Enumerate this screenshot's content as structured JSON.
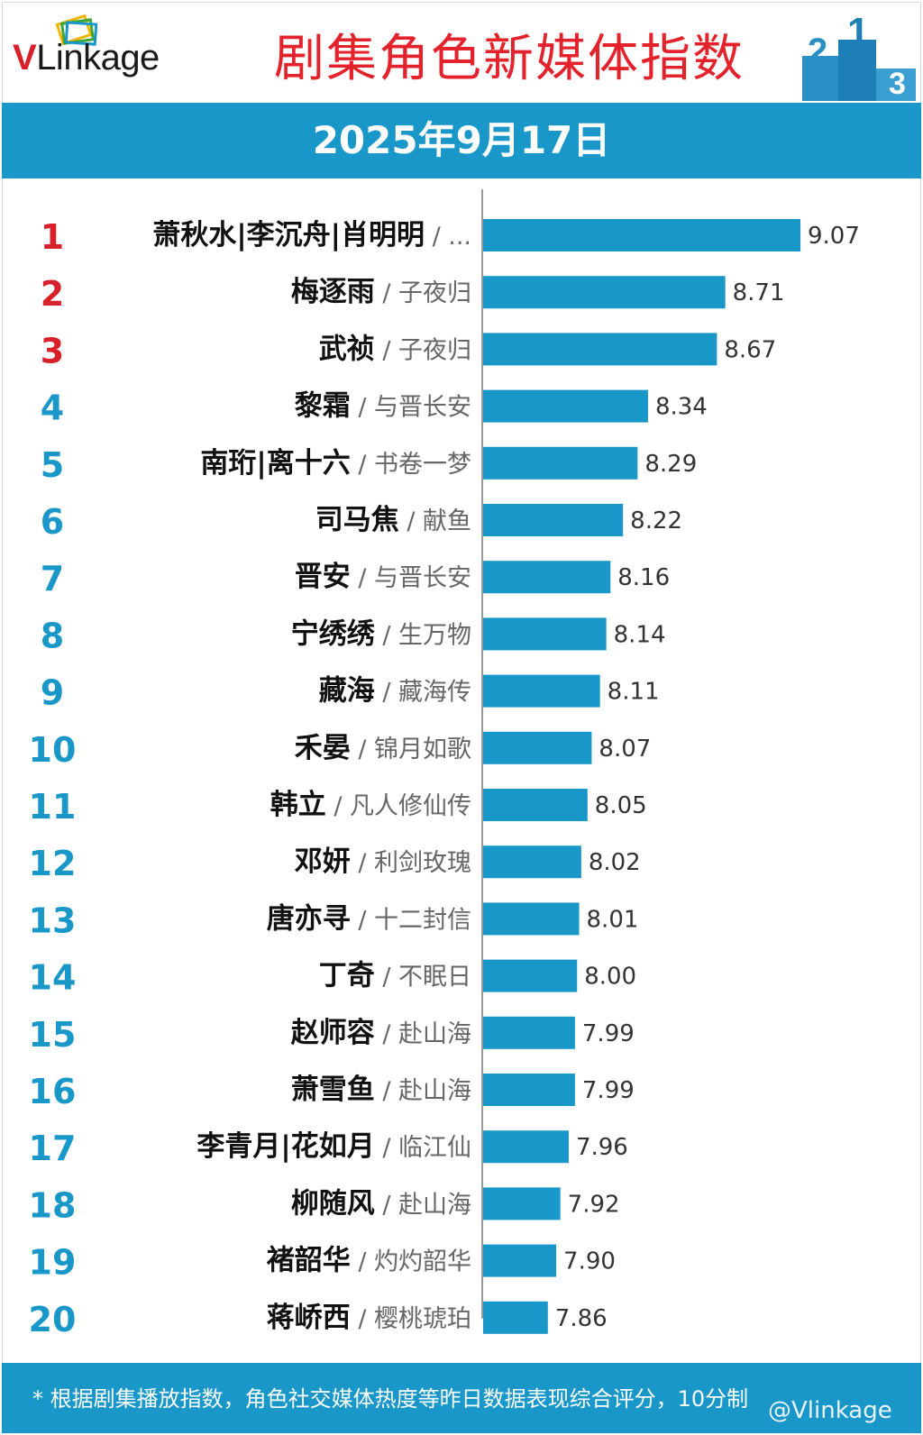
{
  "header": {
    "logo_v": "V",
    "logo_rest": "Linkage",
    "title": "剧集角色新媒体指数",
    "date": "2025年9月17日"
  },
  "colors": {
    "bar": "#1897c8",
    "rank_top": "#d8202b",
    "rank": "#1897c8",
    "title": "#e3222b"
  },
  "chart_data": {
    "type": "bar",
    "orientation": "horizontal",
    "title": "剧集角色新媒体指数",
    "subtitle": "2025年9月17日",
    "ranks": [
      "1",
      "2",
      "3",
      "4",
      "5",
      "6",
      "7",
      "8",
      "9",
      "10",
      "11",
      "12",
      "13",
      "14",
      "15",
      "16",
      "17",
      "18",
      "19",
      "20"
    ],
    "characters": [
      "萧秋水|李沉舟|肖明明",
      "梅逐雨",
      "武祯",
      "黎霜",
      "南珩|离十六",
      "司马焦",
      "晋安",
      "宁绣绣",
      "藏海",
      "禾晏",
      "韩立",
      "邓妍",
      "唐亦寻",
      "丁奇",
      "赵师容",
      "萧雪鱼",
      "李青月|花如月",
      "柳随风",
      "褚韶华",
      "蒋峤西"
    ],
    "dramas": [
      "...",
      "子夜归",
      "子夜归",
      "与晋长安",
      "书卷一梦",
      "献鱼",
      "与晋长安",
      "生万物",
      "藏海传",
      "锦月如歌",
      "凡人修仙传",
      "利剑玫瑰",
      "十二封信",
      "不眠日",
      "赴山海",
      "赴山海",
      "临江仙",
      "赴山海",
      "灼灼韶华",
      "樱桃琥珀"
    ],
    "values": [
      9.07,
      8.71,
      8.67,
      8.34,
      8.29,
      8.22,
      8.16,
      8.14,
      8.11,
      8.07,
      8.05,
      8.02,
      8.01,
      8.0,
      7.99,
      7.99,
      7.96,
      7.92,
      7.9,
      7.86
    ],
    "value_labels": [
      "9.07",
      "8.71",
      "8.67",
      "8.34",
      "8.29",
      "8.22",
      "8.16",
      "8.14",
      "8.11",
      "8.07",
      "8.05",
      "8.02",
      "8.01",
      "8.00",
      "7.99",
      "7.99",
      "7.96",
      "7.92",
      "7.90",
      "7.86"
    ],
    "separator": "/"
  },
  "footer": {
    "note": "* 根据剧集播放指数，角色社交媒体热度等昨日数据表现综合评分，10分制",
    "watermark": "@Vlinkage"
  }
}
